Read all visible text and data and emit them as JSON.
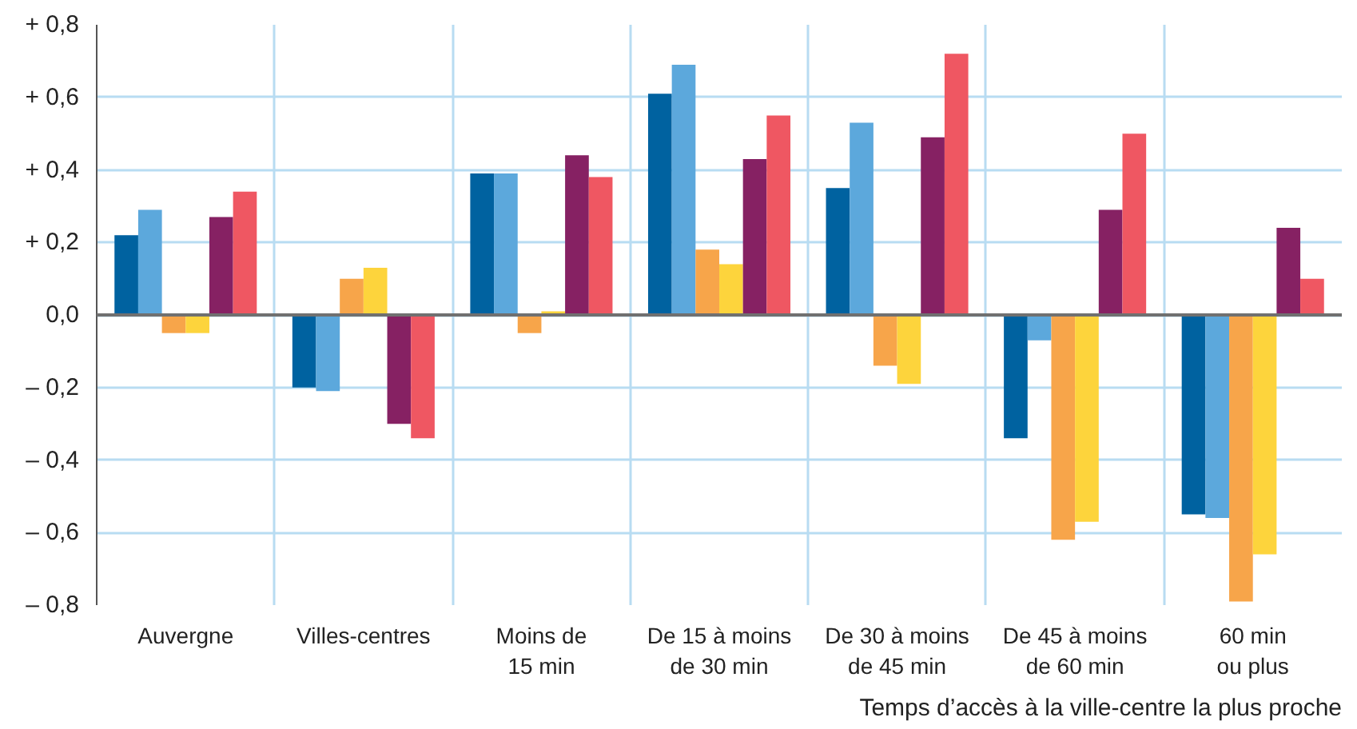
{
  "chart_data": {
    "type": "bar",
    "xlabel": "Temps d’accès à la ville-centre la plus proche",
    "categories": [
      "Auvergne",
      "Villes-centres",
      "Moins de\n15 min",
      "De 15 à moins\nde 30 min",
      "De 30 à moins\nde 45 min",
      "De 45 à moins\nde 60 min",
      "60 min\nou plus"
    ],
    "series": [
      {
        "color": "#0062a0",
        "values": [
          0.22,
          -0.2,
          0.39,
          0.61,
          0.35,
          -0.34,
          -0.55
        ]
      },
      {
        "color": "#5ca8dc",
        "values": [
          0.29,
          -0.21,
          0.39,
          0.69,
          0.53,
          -0.07,
          -0.56
        ]
      },
      {
        "color": "#f7a54a",
        "values": [
          -0.05,
          0.1,
          -0.05,
          0.18,
          -0.14,
          -0.62,
          -0.79
        ]
      },
      {
        "color": "#fdd43c",
        "values": [
          -0.05,
          0.13,
          0.01,
          0.14,
          -0.19,
          -0.57,
          -0.66
        ]
      },
      {
        "color": "#862163",
        "values": [
          0.27,
          -0.3,
          0.44,
          0.43,
          0.49,
          0.29,
          0.24
        ]
      },
      {
        "color": "#ef5762",
        "values": [
          0.34,
          -0.34,
          0.38,
          0.55,
          0.72,
          0.5,
          0.1
        ]
      }
    ],
    "ylim": [
      -0.8,
      0.8
    ],
    "yticks": [
      {
        "value": -0.8,
        "label": "– 0,8"
      },
      {
        "value": -0.6,
        "label": "– 0,6"
      },
      {
        "value": -0.4,
        "label": "– 0,4"
      },
      {
        "value": -0.2,
        "label": "– 0,2"
      },
      {
        "value": 0,
        "label": "0,0"
      },
      {
        "value": 0.2,
        "label": "+ 0,2"
      },
      {
        "value": 0.4,
        "label": "+ 0,4"
      },
      {
        "value": 0.6,
        "label": "+ 0,6"
      },
      {
        "value": 0.8,
        "label": "+ 0,8"
      }
    ],
    "grid": true,
    "ref_lines": [
      {
        "axis": "y",
        "value": 0,
        "color": "#707070"
      }
    ]
  }
}
